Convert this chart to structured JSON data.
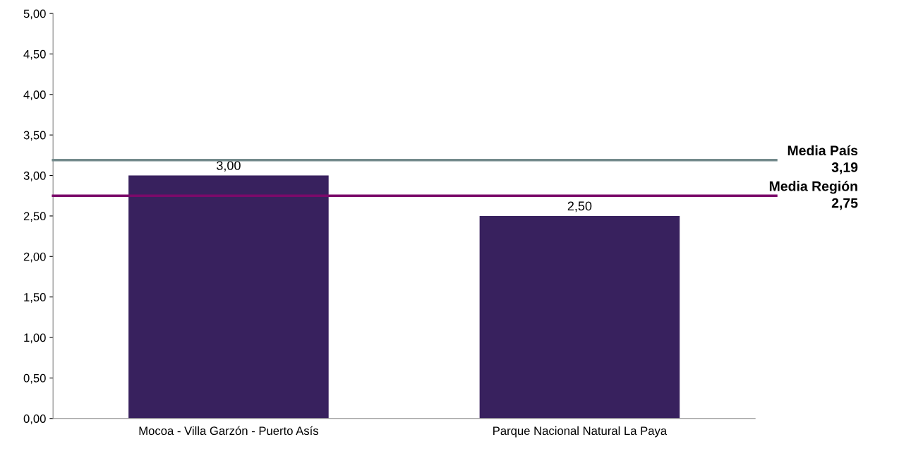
{
  "chart_data": {
    "type": "bar",
    "categories": [
      "Mocoa - Villa Garzón - Puerto Asís",
      "Parque Nacional Natural La Paya"
    ],
    "values": [
      3.0,
      2.5
    ],
    "color": "#38215e",
    "value_labels": [
      "3,00",
      "2,50"
    ],
    "ylim": [
      0,
      5
    ],
    "yticks": [
      {
        "value": 0,
        "label": "0,00"
      },
      {
        "value": 0.5,
        "label": "0,50"
      },
      {
        "value": 1,
        "label": "1,00"
      },
      {
        "value": 1.5,
        "label": "1,50"
      },
      {
        "value": 2,
        "label": "2,00"
      },
      {
        "value": 2.5,
        "label": "2,50"
      },
      {
        "value": 3,
        "label": "3,00"
      },
      {
        "value": 3.5,
        "label": "3,50"
      },
      {
        "value": 4,
        "label": "4,00"
      },
      {
        "value": 4.5,
        "label": "4,50"
      },
      {
        "value": 5,
        "label": "5,00"
      }
    ],
    "ref_lines": [
      {
        "axis": "y",
        "value": 3.19,
        "label": "Media País\n3,19",
        "color": "#748a8c"
      },
      {
        "axis": "y",
        "value": 2.75,
        "label": "Media Región\n2,75",
        "color": "#7b0a6a"
      }
    ],
    "grid": false,
    "legend": false
  }
}
